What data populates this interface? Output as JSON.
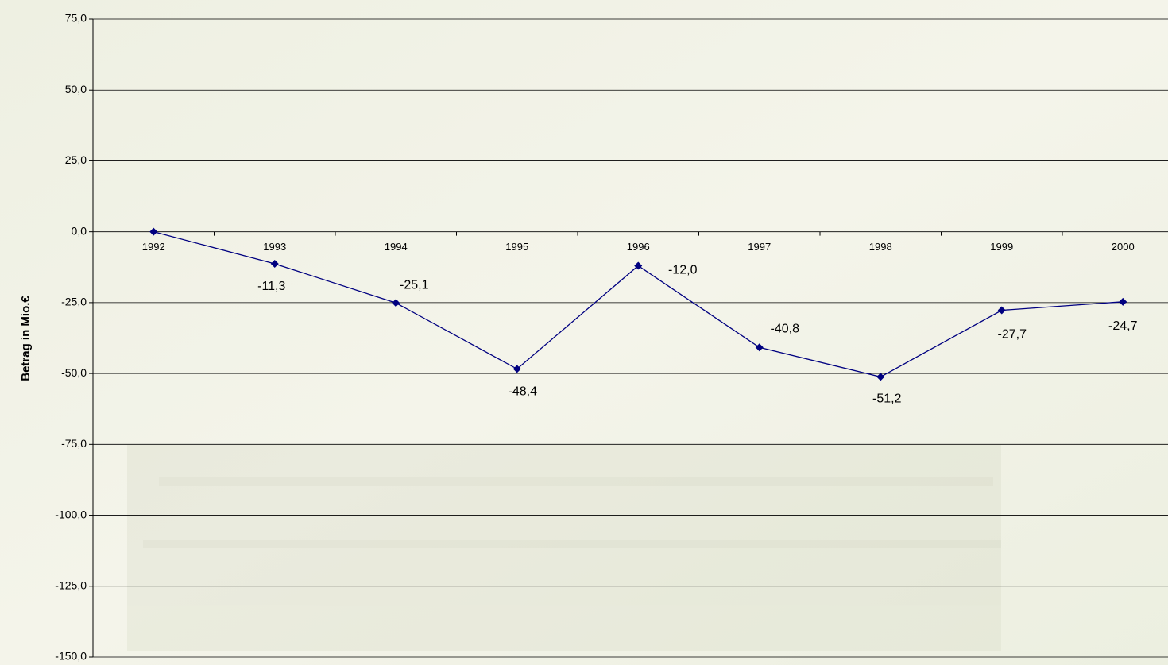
{
  "chart_data": {
    "type": "line",
    "y_label": "Betrag in Mio.€",
    "categories": [
      "1992",
      "1993",
      "1994",
      "1995",
      "1996",
      "1997",
      "1998",
      "1999",
      "2000"
    ],
    "series": [
      {
        "color": "#000080",
        "values": [
          0,
          -11.3,
          -25.1,
          -48.4,
          -12.0,
          -40.8,
          -51.2,
          -27.7,
          -24.7
        ],
        "value_labels": [
          null,
          "-11,3",
          "-25,1",
          "-48,4",
          "-12,0",
          "-40,8",
          "-51,2",
          "-27,7",
          "-24,7"
        ]
      }
    ],
    "ylim": [
      -150,
      75
    ],
    "yticks": [
      {
        "value": -150,
        "label": "-150,0"
      },
      {
        "value": -125,
        "label": "-125,0"
      },
      {
        "value": -100,
        "label": "-100,0"
      },
      {
        "value": -75,
        "label": "-75,0"
      },
      {
        "value": -50,
        "label": "-50,0"
      },
      {
        "value": -25,
        "label": "-25,0"
      },
      {
        "value": 0,
        "label": "0,0"
      },
      {
        "value": 25,
        "label": "25,0"
      },
      {
        "value": 50,
        "label": "50,0"
      },
      {
        "value": 75,
        "label": "75,0"
      }
    ],
    "grid": true
  }
}
